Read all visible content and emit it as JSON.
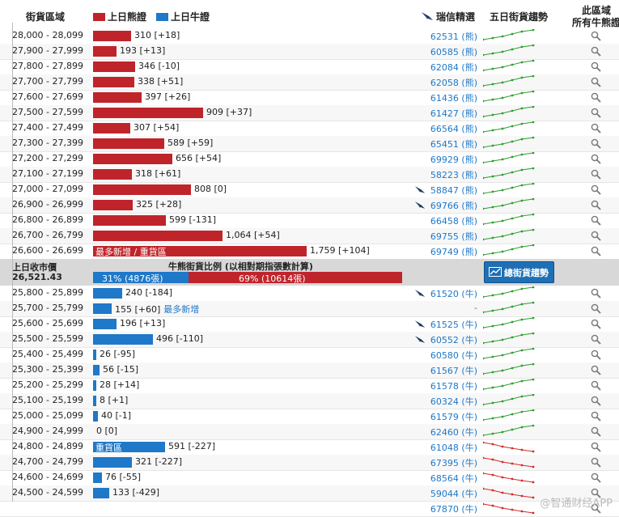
{
  "header": {
    "range_col": "街貨區域",
    "legend_bear": "上日熊證",
    "legend_bull": "上日牛證",
    "ubs_col": "瑞信精選",
    "trend_col": "五日街貨趨勢",
    "search_col_line1": "此區域",
    "search_col_line2": "所有牛熊證"
  },
  "colors": {
    "bear": "#c0242b",
    "bull": "#1f78c8",
    "trend_up": "#2e9e2e",
    "trend_down": "#d22b2b",
    "code": "#1f78c8"
  },
  "bear_rows": [
    {
      "range": "28,000 - 28,099",
      "value": "310 [+18]",
      "amount": 310,
      "code": "62531 (熊)",
      "icon": false,
      "trend": "up"
    },
    {
      "range": "27,900 - 27,999",
      "value": "193 [+13]",
      "amount": 193,
      "code": "60585 (熊)",
      "icon": false,
      "trend": "up"
    },
    {
      "range": "27,800 - 27,899",
      "value": "346 [-10]",
      "amount": 346,
      "code": "62084 (熊)",
      "icon": false,
      "trend": "up"
    },
    {
      "range": "27,700 - 27,799",
      "value": "338 [+51]",
      "amount": 338,
      "code": "62058 (熊)",
      "icon": false,
      "trend": "up"
    },
    {
      "range": "27,600 - 27,699",
      "value": "397 [+26]",
      "amount": 397,
      "code": "61436 (熊)",
      "icon": false,
      "trend": "up"
    },
    {
      "range": "27,500 - 27,599",
      "value": "909 [+37]",
      "amount": 909,
      "code": "61427 (熊)",
      "icon": false,
      "trend": "up"
    },
    {
      "range": "27,400 - 27,499",
      "value": "307 [+54]",
      "amount": 307,
      "code": "66564 (熊)",
      "icon": false,
      "trend": "up"
    },
    {
      "range": "27,300 - 27,399",
      "value": "589 [+59]",
      "amount": 589,
      "code": "65451 (熊)",
      "icon": false,
      "trend": "up"
    },
    {
      "range": "27,200 - 27,299",
      "value": "656 [+54]",
      "amount": 656,
      "code": "69929 (熊)",
      "icon": false,
      "trend": "up"
    },
    {
      "range": "27,100 - 27,199",
      "value": "318 [+61]",
      "amount": 318,
      "code": "58223 (熊)",
      "icon": false,
      "trend": "up"
    },
    {
      "range": "27,000 - 27,099",
      "value": "808 [0]",
      "amount": 808,
      "code": "58847 (熊)",
      "icon": true,
      "trend": "up"
    },
    {
      "range": "26,900 - 26,999",
      "value": "325 [+28]",
      "amount": 325,
      "code": "69766 (熊)",
      "icon": true,
      "trend": "up"
    },
    {
      "range": "26,800 - 26,899",
      "value": "599 [-131]",
      "amount": 599,
      "code": "66458 (熊)",
      "icon": false,
      "trend": "up"
    },
    {
      "range": "26,700 - 26,799",
      "value": "1,064 [+54]",
      "amount": 1064,
      "code": "69755 (熊)",
      "icon": false,
      "trend": "up"
    },
    {
      "range": "26,600 - 26,699",
      "value": "1,759 [+104]",
      "amount": 1759,
      "code": "69749 (熊)",
      "icon": false,
      "trend": "up",
      "bar_label": "最多新增 / 重貨區"
    }
  ],
  "divider": {
    "close_label": "上日收市價",
    "close_value": "26,521.43",
    "ratio_title": "牛熊街貨比例 (以相對期指張數計算)",
    "bull_pct": 31,
    "bear_pct": 69,
    "bull_label": "31% (4876張)",
    "bear_label": "69% (10614張)",
    "button_label": "總街貨趨勢"
  },
  "bull_rows": [
    {
      "range": "25,800 - 25,899",
      "value": "240 [-184]",
      "amount": 240,
      "code": "61520 (牛)",
      "icon": true,
      "trend": "up"
    },
    {
      "range": "25,700 - 25,799",
      "value": "155 [+60]",
      "amount": 155,
      "code": "-",
      "icon": false,
      "trend": "up",
      "tag": "最多新增"
    },
    {
      "range": "25,600 - 25,699",
      "value": "196 [+13]",
      "amount": 196,
      "code": "61525 (牛)",
      "icon": true,
      "trend": "up"
    },
    {
      "range": "25,500 - 25,599",
      "value": "496 [-110]",
      "amount": 496,
      "code": "60552 (牛)",
      "icon": true,
      "trend": "up"
    },
    {
      "range": "25,400 - 25,499",
      "value": "26 [-95]",
      "amount": 26,
      "code": "60580 (牛)",
      "icon": false,
      "trend": "up"
    },
    {
      "range": "25,300 - 25,399",
      "value": "56 [-15]",
      "amount": 56,
      "code": "61567 (牛)",
      "icon": false,
      "trend": "up"
    },
    {
      "range": "25,200 - 25,299",
      "value": "28 [+14]",
      "amount": 28,
      "code": "61578 (牛)",
      "icon": false,
      "trend": "up"
    },
    {
      "range": "25,100 - 25,199",
      "value": "8 [+1]",
      "amount": 8,
      "code": "60324 (牛)",
      "icon": false,
      "trend": "up"
    },
    {
      "range": "25,000 - 25,099",
      "value": "40 [-1]",
      "amount": 40,
      "code": "61579 (牛)",
      "icon": false,
      "trend": "up"
    },
    {
      "range": "24,900 - 24,999",
      "value": "0 [0]",
      "amount": 0,
      "code": "62460 (牛)",
      "icon": false,
      "trend": "up"
    },
    {
      "range": "24,800 - 24,899",
      "value": "591 [-227]",
      "amount": 591,
      "code": "61048 (牛)",
      "icon": false,
      "trend": "down",
      "bar_label": "重貨區"
    },
    {
      "range": "24,700 - 24,799",
      "value": "321 [-227]",
      "amount": 321,
      "code": "67395 (牛)",
      "icon": false,
      "trend": "down"
    },
    {
      "range": "24,600 - 24,699",
      "value": "76 [-55]",
      "amount": 76,
      "code": "68564 (牛)",
      "icon": false,
      "trend": "down"
    },
    {
      "range": "24,500 - 24,599",
      "value": "133 [-429]",
      "amount": 133,
      "code": "59044 (牛)",
      "icon": false,
      "trend": "down"
    },
    {
      "range": "",
      "value": "",
      "amount": 0,
      "code": "67870 (牛)",
      "icon": false,
      "trend": "down"
    }
  ],
  "watermark": "@智通财经APP"
}
